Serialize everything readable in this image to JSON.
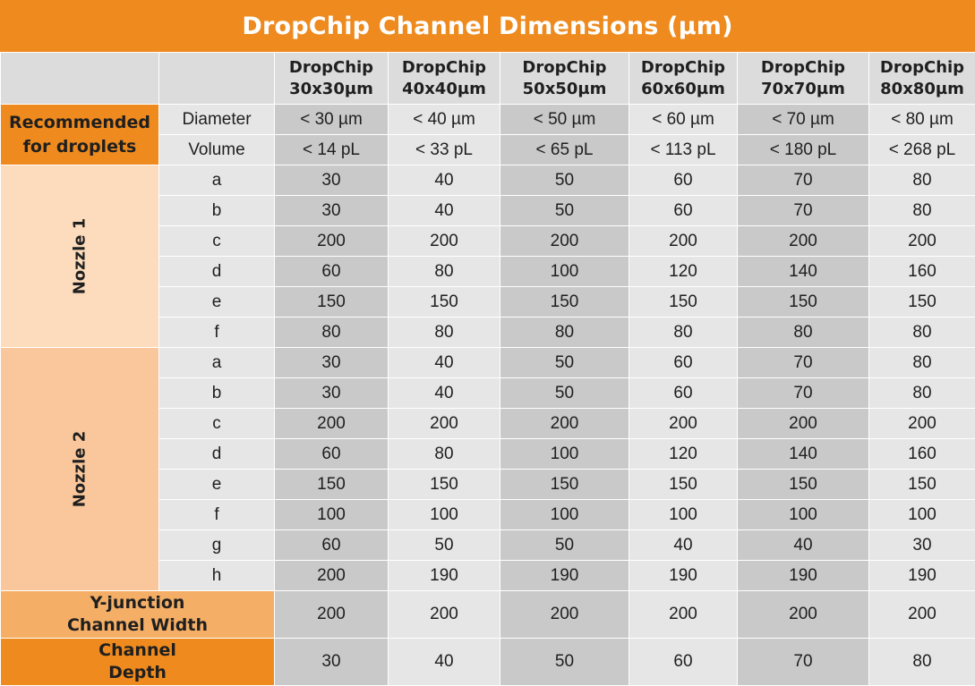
{
  "title": "DropChip Channel Dimensions (µm)",
  "columns": [
    {
      "line1": "DropChip",
      "line2": "30x30µm"
    },
    {
      "line1": "DropChip",
      "line2": "40x40µm"
    },
    {
      "line1": "DropChip",
      "line2": "50x50µm"
    },
    {
      "line1": "DropChip",
      "line2": "60x60µm"
    },
    {
      "line1": "DropChip",
      "line2": "70x70µm"
    },
    {
      "line1": "DropChip",
      "line2": "80x80µm"
    }
  ],
  "recommended": {
    "label_line1": "Recommended",
    "label_line2": "for droplets",
    "rows": [
      {
        "param": "Diameter",
        "values": [
          "< 30 µm",
          "< 40 µm",
          "< 50 µm",
          "< 60 µm",
          "< 70 µm",
          "< 80 µm"
        ]
      },
      {
        "param": "Volume",
        "values": [
          "< 14 pL",
          "< 33 pL",
          "< 65 pL",
          "< 113 pL",
          "< 180 pL",
          "< 268 pL"
        ]
      }
    ]
  },
  "nozzle1": {
    "label": "Nozzle 1",
    "rows": [
      {
        "param": "a",
        "values": [
          "30",
          "40",
          "50",
          "60",
          "70",
          "80"
        ]
      },
      {
        "param": "b",
        "values": [
          "30",
          "40",
          "50",
          "60",
          "70",
          "80"
        ]
      },
      {
        "param": "c",
        "values": [
          "200",
          "200",
          "200",
          "200",
          "200",
          "200"
        ]
      },
      {
        "param": "d",
        "values": [
          "60",
          "80",
          "100",
          "120",
          "140",
          "160"
        ]
      },
      {
        "param": "e",
        "values": [
          "150",
          "150",
          "150",
          "150",
          "150",
          "150"
        ]
      },
      {
        "param": "f",
        "values": [
          "80",
          "80",
          "80",
          "80",
          "80",
          "80"
        ]
      }
    ]
  },
  "nozzle2": {
    "label": "Nozzle 2",
    "rows": [
      {
        "param": "a",
        "values": [
          "30",
          "40",
          "50",
          "60",
          "70",
          "80"
        ]
      },
      {
        "param": "b",
        "values": [
          "30",
          "40",
          "50",
          "60",
          "70",
          "80"
        ]
      },
      {
        "param": "c",
        "values": [
          "200",
          "200",
          "200",
          "200",
          "200",
          "200"
        ]
      },
      {
        "param": "d",
        "values": [
          "60",
          "80",
          "100",
          "120",
          "140",
          "160"
        ]
      },
      {
        "param": "e",
        "values": [
          "150",
          "150",
          "150",
          "150",
          "150",
          "150"
        ]
      },
      {
        "param": "f",
        "values": [
          "100",
          "100",
          "100",
          "100",
          "100",
          "100"
        ]
      },
      {
        "param": "g",
        "values": [
          "60",
          "50",
          "50",
          "40",
          "40",
          "30"
        ]
      },
      {
        "param": "h",
        "values": [
          "200",
          "190",
          "190",
          "190",
          "190",
          "190"
        ]
      }
    ]
  },
  "y_junction": {
    "label_line1": "Y-junction",
    "label_line2": "Channel Width",
    "values": [
      "200",
      "200",
      "200",
      "200",
      "200",
      "200"
    ]
  },
  "channel_depth": {
    "label_line1": "Channel",
    "label_line2": "Depth",
    "values": [
      "30",
      "40",
      "50",
      "60",
      "70",
      "80"
    ]
  },
  "colors": {
    "accent_orange": "#ee8a1e",
    "nozzle1_fill": "#fcdcbc",
    "nozzle2_fill": "#f9c79b",
    "yjunction_fill": "#f4ae66",
    "cell_dark": "#c9c9c9",
    "cell_light": "#e6e6e6"
  }
}
